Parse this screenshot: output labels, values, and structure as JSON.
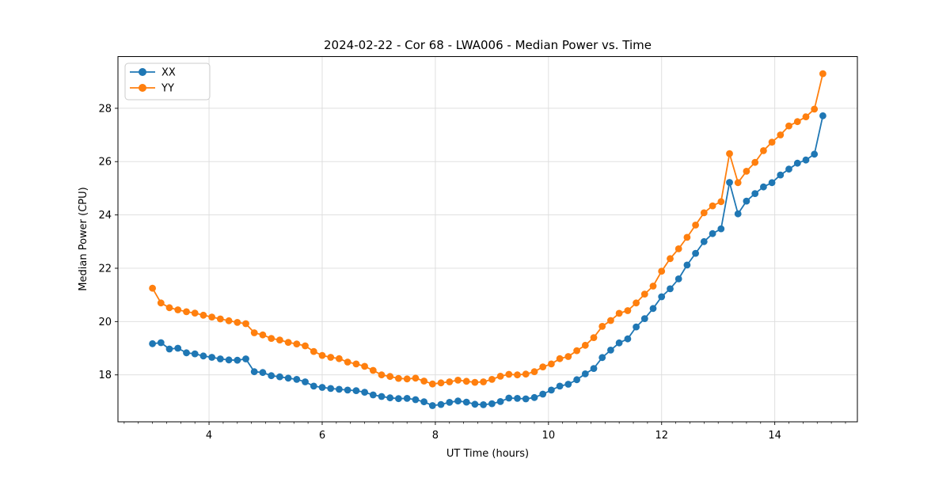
{
  "chart_data": {
    "type": "line",
    "title": "2024-02-22 - Cor 68 - LWA006 - Median Power vs. Time",
    "xlabel": "UT Time (hours)",
    "ylabel": "Median Power (CPU)",
    "xlim": [
      2.39,
      15.46
    ],
    "ylim": [
      16.24,
      29.94
    ],
    "x_ticks": [
      4,
      6,
      8,
      10,
      12,
      14
    ],
    "y_ticks": [
      18,
      20,
      22,
      24,
      26,
      28
    ],
    "x_minor_step": 0.25,
    "grid": true,
    "grid_color": "#dcdcdc",
    "legend_position": "upper left",
    "marker": "circle",
    "x": [
      3.0,
      3.15,
      3.3,
      3.45,
      3.6,
      3.75,
      3.9,
      4.05,
      4.2,
      4.35,
      4.5,
      4.65,
      4.8,
      4.95,
      5.1,
      5.25,
      5.4,
      5.55,
      5.7,
      5.85,
      6.0,
      6.15,
      6.3,
      6.45,
      6.6,
      6.75,
      6.9,
      7.05,
      7.2,
      7.35,
      7.5,
      7.65,
      7.8,
      7.95,
      8.1,
      8.25,
      8.4,
      8.55,
      8.7,
      8.85,
      9.0,
      9.15,
      9.3,
      9.45,
      9.6,
      9.75,
      9.9,
      10.05,
      10.2,
      10.35,
      10.5,
      10.65,
      10.8,
      10.95,
      11.1,
      11.25,
      11.4,
      11.55,
      11.7,
      11.85,
      12.0,
      12.15,
      12.3,
      12.45,
      12.6,
      12.75,
      12.9,
      13.05,
      13.2,
      13.35,
      13.5,
      13.65,
      13.8,
      13.95,
      14.1,
      14.25,
      14.4,
      14.55,
      14.7,
      14.85
    ],
    "series": [
      {
        "name": "XX",
        "color": "#1f77b4",
        "values": [
          19.17,
          19.21,
          18.97,
          19.0,
          18.83,
          18.79,
          18.71,
          18.66,
          18.6,
          18.56,
          18.55,
          18.6,
          18.12,
          18.09,
          17.97,
          17.93,
          17.88,
          17.83,
          17.74,
          17.58,
          17.53,
          17.49,
          17.46,
          17.43,
          17.41,
          17.35,
          17.25,
          17.19,
          17.14,
          17.11,
          17.12,
          17.07,
          16.99,
          16.85,
          16.89,
          16.97,
          17.02,
          16.98,
          16.9,
          16.88,
          16.92,
          17.0,
          17.13,
          17.12,
          17.1,
          17.15,
          17.28,
          17.43,
          17.58,
          17.65,
          17.82,
          18.04,
          18.24,
          18.65,
          18.93,
          19.2,
          19.35,
          19.8,
          20.11,
          20.49,
          20.93,
          21.23,
          21.6,
          22.12,
          22.56,
          23.0,
          23.3,
          23.48,
          25.22,
          24.04,
          24.52,
          24.8,
          25.05,
          25.21,
          25.5,
          25.72,
          25.94,
          26.06,
          26.28,
          27.72
        ]
      },
      {
        "name": "YY",
        "color": "#ff7f0e",
        "values": [
          21.25,
          20.7,
          20.52,
          20.44,
          20.37,
          20.32,
          20.24,
          20.17,
          20.1,
          20.03,
          19.97,
          19.92,
          19.58,
          19.5,
          19.37,
          19.31,
          19.22,
          19.16,
          19.09,
          18.88,
          18.73,
          18.66,
          18.61,
          18.48,
          18.41,
          18.32,
          18.17,
          18.0,
          17.94,
          17.87,
          17.85,
          17.88,
          17.77,
          17.66,
          17.7,
          17.74,
          17.8,
          17.76,
          17.72,
          17.74,
          17.83,
          17.95,
          18.02,
          18.0,
          18.03,
          18.12,
          18.3,
          18.41,
          18.61,
          18.69,
          18.91,
          19.11,
          19.4,
          19.82,
          20.04,
          20.31,
          20.41,
          20.7,
          21.03,
          21.33,
          21.89,
          22.36,
          22.73,
          23.16,
          23.62,
          24.08,
          24.34,
          24.5,
          26.3,
          25.21,
          25.64,
          25.97,
          26.41,
          26.73,
          27.0,
          27.34,
          27.5,
          27.68,
          27.97,
          29.3
        ]
      }
    ]
  }
}
